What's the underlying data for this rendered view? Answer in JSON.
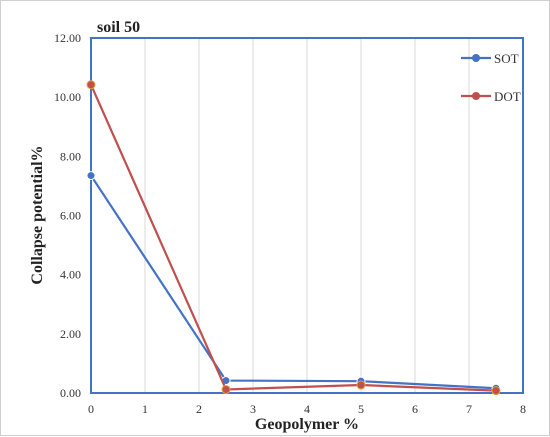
{
  "chart_data": {
    "type": "line",
    "title": "soil 50",
    "xlabel": "Geopolymer %",
    "ylabel": "Collapse potential%",
    "xlim": [
      0,
      8
    ],
    "ylim": [
      0,
      12
    ],
    "x_ticks": [
      "0",
      "1",
      "2",
      "3",
      "4",
      "5",
      "6",
      "7",
      "8"
    ],
    "y_ticks": [
      "0.00",
      "2.00",
      "4.00",
      "6.00",
      "8.00",
      "10.00",
      "12.00"
    ],
    "grid": "vertical",
    "legend_position": "top-right",
    "series": [
      {
        "name": "SOT",
        "color": "#4472c4",
        "x": [
          0,
          2.5,
          5,
          7.5
        ],
        "y": [
          7.35,
          0.42,
          0.4,
          0.16
        ]
      },
      {
        "name": "DOT",
        "color": "#c0504d",
        "x": [
          0,
          2.5,
          5,
          7.5
        ],
        "y": [
          10.42,
          0.12,
          0.27,
          0.08
        ]
      }
    ]
  },
  "colors": {
    "plot_border": "#4472c4",
    "grid": "#d9d9d9"
  }
}
